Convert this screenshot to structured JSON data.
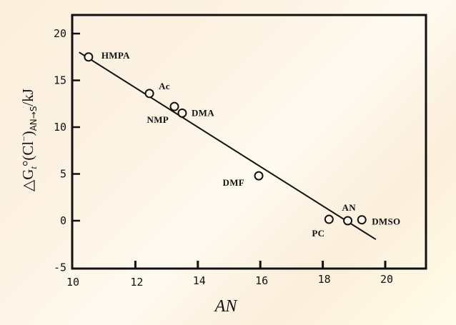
{
  "chart_data": {
    "type": "scatter",
    "title": "",
    "xlabel": "AN",
    "ylabel": "ΔG_t°(Cl⁻)_{AN→S}/kJ",
    "ylabel_parts": {
      "main": "△G",
      "sub_t": "t",
      "deg": "°(Cl",
      "sup": "−",
      "close": ")",
      "sub": "AN→S",
      "unit": "/kJ"
    },
    "xlim": [
      10,
      21.2
    ],
    "ylim": [
      -5,
      22
    ],
    "xticks": [
      10,
      12,
      14,
      16,
      18,
      20
    ],
    "yticks": [
      -5,
      0,
      5,
      10,
      15,
      20
    ],
    "grid": false,
    "legend": null,
    "points": [
      {
        "label": "HMPA",
        "x": 10.5,
        "y": 17.5
      },
      {
        "label": "Ac",
        "x": 12.45,
        "y": 13.6
      },
      {
        "label": "NMP",
        "x": 13.25,
        "y": 12.2
      },
      {
        "label": "DMA",
        "x": 13.5,
        "y": 11.5
      },
      {
        "label": "DMF",
        "x": 15.95,
        "y": 4.8
      },
      {
        "label": "PC",
        "x": 18.2,
        "y": 0.15
      },
      {
        "label": "AN",
        "x": 18.8,
        "y": 0.0
      },
      {
        "label": "DMSO",
        "x": 19.25,
        "y": 0.1
      }
    ],
    "fit_line": {
      "x": [
        10.2,
        19.7
      ],
      "y": [
        18.0,
        -2.0
      ]
    }
  }
}
